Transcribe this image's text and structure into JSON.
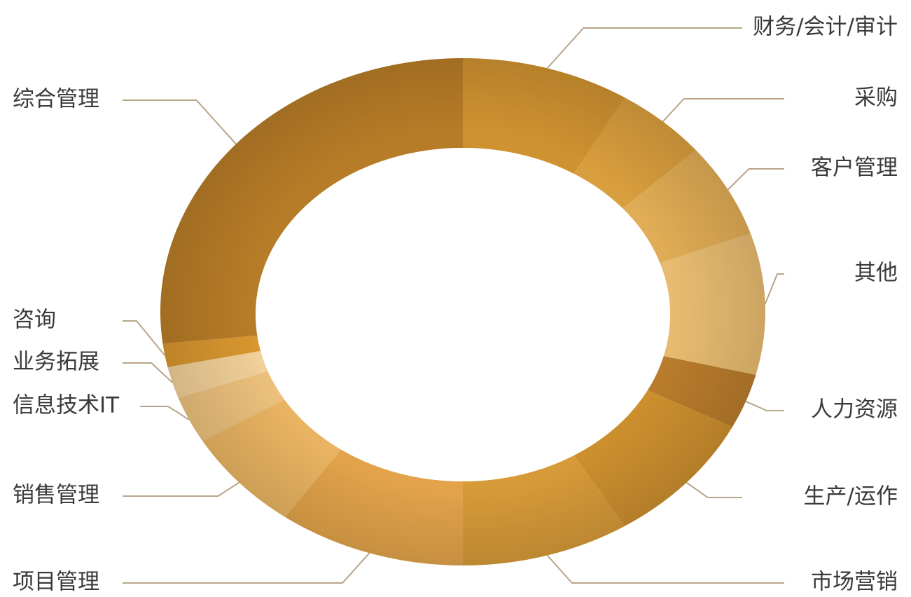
{
  "chart_data": {
    "type": "pie",
    "variant": "donut",
    "title": "",
    "slices": [
      {
        "label": "财务/会计/审计",
        "value": 9.0,
        "color": "#cf9230"
      },
      {
        "label": "采购",
        "value": 5.0,
        "color": "#d99e3d"
      },
      {
        "label": "客户管理",
        "value": 6.0,
        "color": "#e0ac55"
      },
      {
        "label": "其他",
        "value": 9.0,
        "color": "#e8bb70"
      },
      {
        "label": "人力资源",
        "value": 3.5,
        "color": "#b97c2c"
      },
      {
        "label": "生产/运作",
        "value": 8.5,
        "color": "#cc8f2e"
      },
      {
        "label": "市场营销",
        "value": 9.0,
        "color": "#d69a38"
      },
      {
        "label": "项目管理",
        "value": 10.0,
        "color": "#e2a34a"
      },
      {
        "label": "销售管理",
        "value": 6.5,
        "color": "#e9b462"
      },
      {
        "label": "信息技术IT",
        "value": 3.0,
        "color": "#ecc07c"
      },
      {
        "label": "业务拓展",
        "value": 2.0,
        "color": "#f0cf98"
      },
      {
        "label": "咨询",
        "value": 1.5,
        "color": "#d8962f"
      },
      {
        "label": "综合管理",
        "value": 27.0,
        "color": "#b77c27"
      }
    ],
    "start_angle_deg": -90,
    "direction": "clockwise",
    "legend": "leader-line labels"
  }
}
